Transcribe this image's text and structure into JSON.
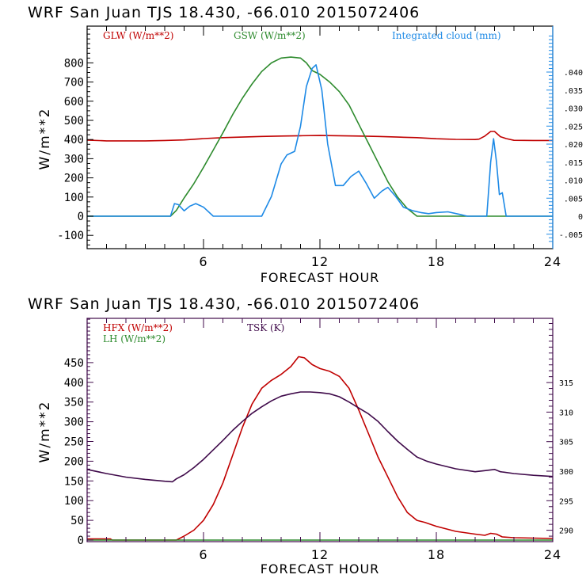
{
  "chart_data": [
    {
      "type": "line",
      "title": "WRF  San Juan TJS  18.430, -66.010  2015072406",
      "xlabel": "FORECAST HOUR",
      "ylabel": "W/m**2",
      "xlim": [
        0,
        24
      ],
      "ylim": [
        -160,
        990
      ],
      "x_ticks": [
        6,
        12,
        18,
        24
      ],
      "y_ticks": [
        -100,
        0,
        100,
        200,
        300,
        400,
        500,
        600,
        700,
        800
      ],
      "y_tick_labels": [
        "-100",
        "0",
        "100",
        "200",
        "300",
        "400",
        "500",
        "600",
        "700",
        "800"
      ],
      "y2_label": "",
      "y2_ticks": [
        -0.005,
        0,
        0.005,
        0.01,
        0.015,
        0.02,
        0.025,
        0.03,
        0.035,
        0.04
      ],
      "y2_tick_labels": [
        "-.005",
        "0",
        ".005",
        ".010",
        ".015",
        ".020",
        ".025",
        ".030",
        ".035",
        ".040"
      ],
      "frame_color": "#000000",
      "right_axis_color": "#1e8ae6",
      "legend": [
        {
          "label": "GLW (W/m**2)",
          "color": "#c00000"
        },
        {
          "label": "GSW (W/m**2)",
          "color": "#2e8b2e"
        },
        {
          "label": "Integrated cloud (mm)",
          "color": "#1e8ae6"
        }
      ],
      "series": [
        {
          "name": "GLW",
          "axis": "left",
          "color": "#c00000",
          "x": [
            0,
            1,
            2,
            3,
            4,
            5,
            6,
            7,
            8,
            9,
            10,
            11,
            12,
            13,
            14,
            15,
            16,
            17,
            18,
            19,
            20,
            20.2,
            20.5,
            20.8,
            21.0,
            21.3,
            21.6,
            22,
            23,
            24
          ],
          "y": [
            397,
            393,
            393,
            393,
            395,
            398,
            405,
            410,
            413,
            416,
            418,
            420,
            421,
            420,
            418,
            416,
            413,
            410,
            404,
            401,
            400,
            402,
            418,
            442,
            442,
            415,
            405,
            396,
            395,
            395
          ]
        },
        {
          "name": "GSW",
          "axis": "left",
          "color": "#2e8b2e",
          "x": [
            0,
            4.3,
            4.6,
            5,
            5.5,
            6,
            6.5,
            7,
            7.5,
            8,
            8.5,
            9,
            9.5,
            10,
            10.5,
            11,
            11.3,
            11.6,
            12,
            12.5,
            13,
            13.5,
            14,
            14.5,
            15,
            15.5,
            16,
            16.5,
            17,
            18,
            24
          ],
          "y": [
            0,
            0,
            30,
            95,
            170,
            255,
            345,
            435,
            530,
            615,
            690,
            755,
            800,
            825,
            830,
            825,
            800,
            760,
            740,
            700,
            650,
            580,
            480,
            380,
            280,
            180,
            100,
            40,
            0,
            0,
            0
          ]
        },
        {
          "name": "Integrated cloud",
          "axis": "right",
          "color": "#1e8ae6",
          "x": [
            0,
            4.3,
            4.5,
            4.7,
            5.0,
            5.3,
            5.6,
            6.0,
            6.5,
            8,
            9.0,
            9.5,
            10.0,
            10.3,
            10.7,
            11.0,
            11.3,
            11.6,
            11.8,
            12.1,
            12.4,
            12.8,
            13.2,
            13.6,
            14.0,
            14.4,
            14.8,
            15.2,
            15.5,
            15.9,
            16.3,
            16.8,
            17.2,
            17.6,
            18.0,
            18.6,
            19.2,
            19.6,
            20.1,
            20.6,
            20.8,
            20.95,
            21.1,
            21.25,
            21.4,
            21.6,
            24
          ],
          "y": [
            0,
            0,
            0.0035,
            0.0032,
            0.0015,
            0.0028,
            0.0035,
            0.0025,
            0,
            0,
            0,
            0.0055,
            0.0145,
            0.017,
            0.018,
            0.025,
            0.036,
            0.041,
            0.042,
            0.035,
            0.02,
            0.0085,
            0.0085,
            0.011,
            0.0125,
            0.009,
            0.005,
            0.007,
            0.008,
            0.0055,
            0.0025,
            0.0015,
            0.001,
            0.0007,
            0.001,
            0.0012,
            0.0005,
            0.0,
            0,
            0,
            0.015,
            0.0215,
            0.015,
            0.006,
            0.0065,
            0,
            0
          ]
        }
      ]
    },
    {
      "type": "line",
      "title": "WRF  San Juan TJS  18.430, -66.010  2015072406",
      "xlabel": "FORECAST HOUR",
      "ylabel": "W/m**2",
      "xlim": [
        0,
        24
      ],
      "ylim": [
        0,
        565
      ],
      "x_ticks": [
        6,
        12,
        18,
        24
      ],
      "y_ticks": [
        0,
        50,
        100,
        150,
        200,
        250,
        300,
        350,
        400,
        450
      ],
      "y_tick_labels": [
        "0",
        "50",
        "100",
        "150",
        "200",
        "250",
        "300",
        "350",
        "400",
        "450"
      ],
      "y2_ticks": [
        290,
        295,
        300,
        305,
        310,
        315
      ],
      "y2_tick_labels": [
        "290",
        "295",
        "300",
        "305",
        "310",
        "315"
      ],
      "y2lim": [
        288.3,
        326
      ],
      "frame_color": "#3f0a4a",
      "legend": [
        {
          "label": "HFX (W/m**2)",
          "color": "#c00000"
        },
        {
          "label": "LH  (W/m**2)",
          "color": "#2e8b2e"
        },
        {
          "label": "TSK (K)",
          "color": "#3f0a4a"
        }
      ],
      "series": [
        {
          "name": "HFX",
          "axis": "left",
          "color": "#c00000",
          "x": [
            0,
            1.2,
            1.3,
            4.6,
            5.0,
            5.5,
            6.0,
            6.5,
            7.0,
            7.5,
            8.0,
            8.5,
            9.0,
            9.5,
            10.0,
            10.5,
            10.9,
            11.2,
            11.6,
            12.0,
            12.5,
            13.0,
            13.5,
            14.0,
            14.5,
            15.0,
            15.5,
            16.0,
            16.5,
            17.0,
            17.4,
            18.0,
            19.0,
            20.0,
            20.5,
            20.8,
            21.1,
            21.4,
            22,
            23,
            24
          ],
          "y": [
            3,
            3,
            0,
            0,
            10,
            25,
            50,
            90,
            145,
            215,
            285,
            345,
            385,
            405,
            420,
            440,
            465,
            462,
            445,
            435,
            428,
            415,
            385,
            330,
            270,
            210,
            160,
            110,
            70,
            50,
            45,
            35,
            22,
            15,
            12,
            17,
            15,
            8,
            6,
            5,
            4
          ]
        },
        {
          "name": "LH",
          "axis": "left",
          "color": "#2e8b2e",
          "x": [
            0,
            24
          ],
          "y": [
            0,
            0
          ]
        },
        {
          "name": "TSK",
          "axis": "right",
          "color": "#3f0a4a",
          "x": [
            0,
            1,
            2,
            3,
            4,
            4.4,
            4.6,
            5,
            5.5,
            6,
            6.5,
            7,
            7.5,
            8,
            8.5,
            9,
            9.5,
            10,
            10.5,
            11,
            11.5,
            12,
            12.5,
            13,
            13.5,
            14,
            14.5,
            15,
            15.5,
            16,
            16.5,
            17,
            17.5,
            18,
            19,
            20,
            20.5,
            21,
            21.3,
            22,
            23,
            24
          ],
          "y": [
            300.3,
            299.6,
            299.0,
            298.6,
            298.3,
            298.2,
            298.7,
            299.4,
            300.6,
            302.0,
            303.6,
            305.2,
            306.9,
            308.4,
            309.8,
            310.9,
            311.9,
            312.7,
            313.1,
            313.4,
            313.4,
            313.3,
            313.1,
            312.6,
            311.7,
            310.7,
            309.7,
            308.4,
            306.7,
            305.1,
            303.7,
            302.4,
            301.7,
            301.2,
            300.4,
            299.9,
            300.1,
            300.3,
            299.9,
            299.6,
            299.3,
            299.1
          ]
        }
      ]
    }
  ]
}
